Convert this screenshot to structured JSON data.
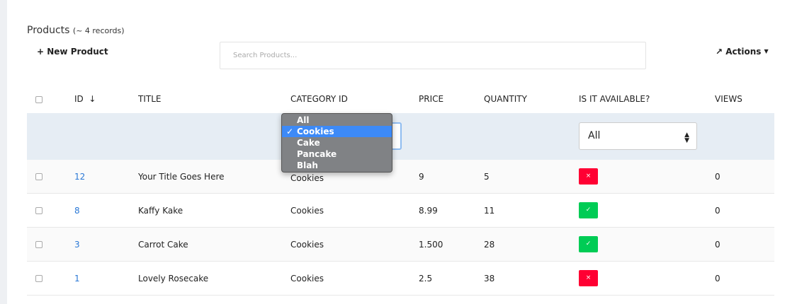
{
  "header": {
    "title": "Products",
    "record_count": "(~ 4 records)",
    "new_button": "New Product",
    "new_icon": "plus-icon",
    "search_placeholder": "Search Products...",
    "actions_label": "Actions",
    "actions_icon": "hammer-icon"
  },
  "columns": [
    "ID",
    "TITLE",
    "CATEGORY ID",
    "PRICE",
    "QUANTITY",
    "IS IT AVAILABLE?",
    "VIEWS"
  ],
  "sort": {
    "column": "ID",
    "direction": "descending"
  },
  "filters": {
    "category": {
      "value": "Cookies",
      "options": [
        "All",
        "Cookies",
        "Cake",
        "Pancake",
        "Blah"
      ],
      "open": true
    },
    "available": {
      "value": "All"
    }
  },
  "rows": [
    {
      "id": "12",
      "title": "Your Title Goes Here",
      "category": "Cookies",
      "price": "9",
      "quantity": "5",
      "available": false,
      "available_glyph": "×",
      "views": "0"
    },
    {
      "id": "8",
      "title": "Kaffy Kake",
      "category": "Cookies",
      "price": "8.99",
      "quantity": "11",
      "available": true,
      "available_glyph": "✓",
      "views": "0"
    },
    {
      "id": "3",
      "title": "Carrot Cake",
      "category": "Cookies",
      "price": "1.500",
      "quantity": "28",
      "available": true,
      "available_glyph": "✓",
      "views": "0"
    },
    {
      "id": "1",
      "title": "Lovely Rosecake",
      "category": "Cookies",
      "price": "2.5",
      "quantity": "38",
      "available": false,
      "available_glyph": "×",
      "views": "0"
    }
  ],
  "colors": {
    "link": "#2a78d6",
    "unavailable": "#ff0033",
    "available": "#00cc55",
    "filter_bg": "#e6edf4",
    "selected_option": "#3d8af7"
  }
}
